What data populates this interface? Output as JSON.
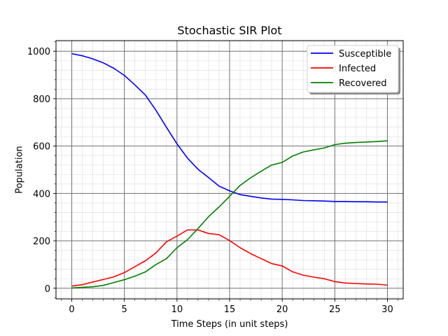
{
  "chart_data": {
    "type": "line",
    "title": "Stochastic SIR Plot",
    "xlabel": "Time Steps (in unit steps)",
    "ylabel": "Population",
    "xlim": [
      -1.5,
      31.5
    ],
    "ylim": [
      -45,
      1045
    ],
    "x_ticks": [
      0,
      5,
      10,
      15,
      20,
      25,
      30
    ],
    "y_ticks": [
      0,
      200,
      400,
      600,
      800,
      1000
    ],
    "grid": true,
    "minor_grid": true,
    "legend_position": "top-right",
    "x": [
      0,
      1,
      2,
      3,
      4,
      5,
      6,
      7,
      8,
      9,
      10,
      11,
      12,
      13,
      14,
      15,
      16,
      17,
      18,
      19,
      20,
      21,
      22,
      23,
      24,
      25,
      26,
      27,
      28,
      29,
      30
    ],
    "series": [
      {
        "name": "Susceptible",
        "color": "#0000ff",
        "values": [
          990,
          981,
          968,
          951,
          928,
          898,
          858,
          815,
          751,
          679,
          609,
          549,
          502,
          467,
          431,
          411,
          395,
          388,
          381,
          376,
          375,
          373,
          370,
          369,
          368,
          366,
          366,
          365,
          365,
          364,
          364
        ]
      },
      {
        "name": "Infected",
        "color": "#ff0000",
        "values": [
          9,
          15,
          26,
          37,
          48,
          66,
          91,
          116,
          149,
          196,
          220,
          246,
          246,
          231,
          226,
          201,
          171,
          146,
          125,
          104,
          94,
          69,
          55,
          47,
          40,
          28,
          22,
          20,
          18,
          17,
          13
        ]
      },
      {
        "name": "Recovered",
        "color": "#008000",
        "values": [
          1,
          4,
          6,
          12,
          24,
          36,
          51,
          69,
          100,
          125,
          171,
          205,
          252,
          302,
          343,
          388,
          434,
          466,
          494,
          520,
          531,
          558,
          575,
          584,
          592,
          606,
          612,
          615,
          617,
          619,
          622
        ]
      }
    ]
  }
}
